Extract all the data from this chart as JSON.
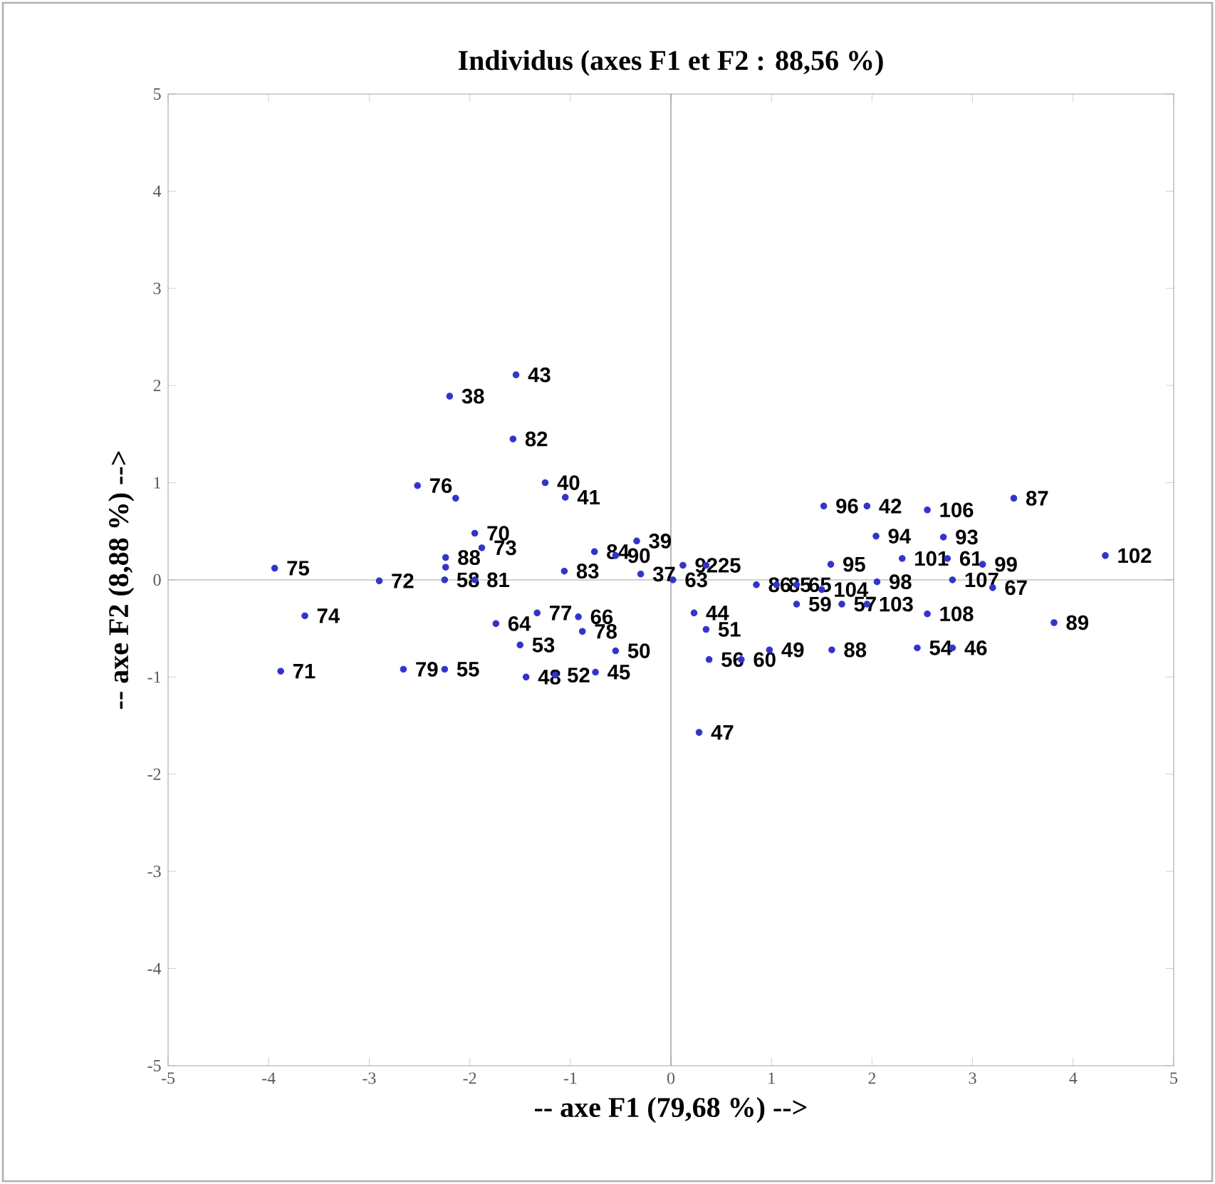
{
  "chart_data": {
    "type": "scatter",
    "title": "Individus (axes F1 et F2 : 88,56 %)",
    "xlabel": "-- axe F1 (79,68 %) -->",
    "ylabel": "-- axe F2 (8,88 %) -->",
    "xlim": [
      -5,
      5
    ],
    "ylim": [
      -5,
      5
    ],
    "xticks": [
      -5,
      -4,
      -3,
      -2,
      -1,
      0,
      1,
      2,
      3,
      4,
      5
    ],
    "yticks": [
      -5,
      -4,
      -3,
      -2,
      -1,
      0,
      1,
      2,
      3,
      4,
      5
    ],
    "grid": false,
    "marker": "circle",
    "ref_lines": [
      {
        "axis": "x",
        "value": 0,
        "color": "#7a7a7a"
      },
      {
        "axis": "y",
        "value": 0,
        "color": "#a0a0a0"
      }
    ],
    "series": [
      {
        "color": "#3333cc",
        "x": [
          -3.94,
          -3.64,
          -3.88,
          -2.9,
          -2.66,
          -2.25,
          -2.2,
          -1.54,
          -1.57,
          -2.52,
          -2.14,
          -1.25,
          -1.05,
          -1.95,
          -1.88,
          -2.24,
          -2.24,
          -2.25,
          -1.95,
          -1.06,
          -0.76,
          -0.55,
          -0.34,
          -0.3,
          0.12,
          0.35,
          0.02,
          -1.33,
          -1.74,
          -1.5,
          -0.92,
          -0.88,
          -0.55,
          -1.44,
          -1.15,
          -0.75,
          0.23,
          0.35,
          0.38,
          0.7,
          0.98,
          1.6,
          0.85,
          1.05,
          1.25,
          1.5,
          1.25,
          1.7,
          1.52,
          1.95,
          1.59,
          2.04,
          2.55,
          3.41,
          2.71,
          2.3,
          2.75,
          2.05,
          2.8,
          3.1,
          3.2,
          1.95,
          2.55,
          3.81,
          4.32,
          2.45,
          2.8,
          0.28
        ],
        "values": [
          0.12,
          -0.37,
          -0.94,
          -0.01,
          -0.92,
          -0.92,
          1.89,
          2.11,
          1.45,
          0.97,
          0.84,
          1.0,
          0.85,
          0.48,
          0.33,
          0.23,
          0.13,
          0.0,
          0.0,
          0.09,
          0.29,
          0.25,
          0.4,
          0.06,
          0.15,
          0.15,
          0.0,
          -0.34,
          -0.45,
          -0.67,
          -0.38,
          -0.53,
          -0.73,
          -1.0,
          -0.98,
          -0.95,
          -0.34,
          -0.51,
          -0.82,
          -0.82,
          -0.72,
          -0.72,
          -0.05,
          -0.05,
          -0.05,
          -0.1,
          -0.25,
          -0.25,
          0.76,
          0.76,
          0.16,
          0.45,
          0.72,
          0.84,
          0.44,
          0.22,
          0.22,
          -0.02,
          0.0,
          0.16,
          -0.08,
          -0.25,
          -0.35,
          -0.44,
          0.25,
          -0.7,
          -0.7,
          -1.57
        ]
      }
    ],
    "annotations": [
      {
        "text": "75",
        "x": -3.94,
        "y": 0.12
      },
      {
        "text": "74",
        "x": -3.64,
        "y": -0.37
      },
      {
        "text": "71",
        "x": -3.88,
        "y": -0.94
      },
      {
        "text": "72",
        "x": -2.9,
        "y": -0.01
      },
      {
        "text": "79",
        "x": -2.66,
        "y": -0.92
      },
      {
        "text": "55",
        "x": -2.25,
        "y": -0.92
      },
      {
        "text": "38",
        "x": -2.2,
        "y": 1.89
      },
      {
        "text": "43",
        "x": -1.54,
        "y": 2.11
      },
      {
        "text": "82",
        "x": -1.57,
        "y": 1.45
      },
      {
        "text": "76",
        "x": -2.52,
        "y": 0.97
      },
      {
        "text": "40",
        "x": -1.25,
        "y": 1.0
      },
      {
        "text": "41",
        "x": -1.05,
        "y": 0.85
      },
      {
        "text": "70",
        "x": -1.95,
        "y": 0.48
      },
      {
        "text": "73",
        "x": -1.88,
        "y": 0.33
      },
      {
        "text": "88",
        "x": -2.24,
        "y": 0.23
      },
      {
        "text": "58",
        "x": -2.25,
        "y": 0.0
      },
      {
        "text": "81",
        "x": -1.95,
        "y": 0.0
      },
      {
        "text": "83",
        "x": -1.06,
        "y": 0.09
      },
      {
        "text": "84",
        "x": -0.76,
        "y": 0.29
      },
      {
        "text": "90",
        "x": -0.55,
        "y": 0.25
      },
      {
        "text": "39",
        "x": -0.34,
        "y": 0.4
      },
      {
        "text": "37",
        "x": -0.3,
        "y": 0.06
      },
      {
        "text": "92",
        "x": 0.12,
        "y": 0.15
      },
      {
        "text": "25",
        "x": 0.35,
        "y": 0.15
      },
      {
        "text": "63",
        "x": 0.02,
        "y": 0.0
      },
      {
        "text": "77",
        "x": -1.33,
        "y": -0.34
      },
      {
        "text": "64",
        "x": -1.74,
        "y": -0.45
      },
      {
        "text": "53",
        "x": -1.5,
        "y": -0.67
      },
      {
        "text": "66",
        "x": -0.92,
        "y": -0.38
      },
      {
        "text": "78",
        "x": -0.88,
        "y": -0.53
      },
      {
        "text": "50",
        "x": -0.55,
        "y": -0.73
      },
      {
        "text": "48",
        "x": -1.44,
        "y": -1.0
      },
      {
        "text": "52",
        "x": -1.15,
        "y": -0.98
      },
      {
        "text": "45",
        "x": -0.75,
        "y": -0.95
      },
      {
        "text": "44",
        "x": 0.23,
        "y": -0.34
      },
      {
        "text": "51",
        "x": 0.35,
        "y": -0.51
      },
      {
        "text": "56",
        "x": 0.38,
        "y": -0.82
      },
      {
        "text": "60",
        "x": 0.7,
        "y": -0.82
      },
      {
        "text": "49",
        "x": 0.98,
        "y": -0.72
      },
      {
        "text": "88",
        "x": 1.6,
        "y": -0.72
      },
      {
        "text": "86",
        "x": 0.85,
        "y": -0.05
      },
      {
        "text": "85",
        "x": 1.05,
        "y": -0.05
      },
      {
        "text": "65",
        "x": 1.25,
        "y": -0.05
      },
      {
        "text": "104",
        "x": 1.5,
        "y": -0.1
      },
      {
        "text": "59",
        "x": 1.25,
        "y": -0.25
      },
      {
        "text": "57",
        "x": 1.7,
        "y": -0.25
      },
      {
        "text": "96",
        "x": 1.52,
        "y": 0.76
      },
      {
        "text": "42",
        "x": 1.95,
        "y": 0.76
      },
      {
        "text": "95",
        "x": 1.59,
        "y": 0.16
      },
      {
        "text": "94",
        "x": 2.04,
        "y": 0.45
      },
      {
        "text": "106",
        "x": 2.55,
        "y": 0.72
      },
      {
        "text": "87",
        "x": 3.41,
        "y": 0.84
      },
      {
        "text": "93",
        "x": 2.71,
        "y": 0.44
      },
      {
        "text": "101",
        "x": 2.3,
        "y": 0.22
      },
      {
        "text": "61",
        "x": 2.75,
        "y": 0.22
      },
      {
        "text": "98",
        "x": 2.05,
        "y": -0.02
      },
      {
        "text": "107",
        "x": 2.8,
        "y": 0.0
      },
      {
        "text": "99",
        "x": 3.1,
        "y": 0.16
      },
      {
        "text": "67",
        "x": 3.2,
        "y": -0.08
      },
      {
        "text": "103",
        "x": 1.95,
        "y": -0.25
      },
      {
        "text": "108",
        "x": 2.55,
        "y": -0.35
      },
      {
        "text": "89",
        "x": 3.81,
        "y": -0.44
      },
      {
        "text": "102",
        "x": 4.32,
        "y": 0.25
      },
      {
        "text": "54",
        "x": 2.45,
        "y": -0.7
      },
      {
        "text": "46",
        "x": 2.8,
        "y": -0.7
      },
      {
        "text": "47",
        "x": 0.28,
        "y": -1.57
      }
    ]
  }
}
